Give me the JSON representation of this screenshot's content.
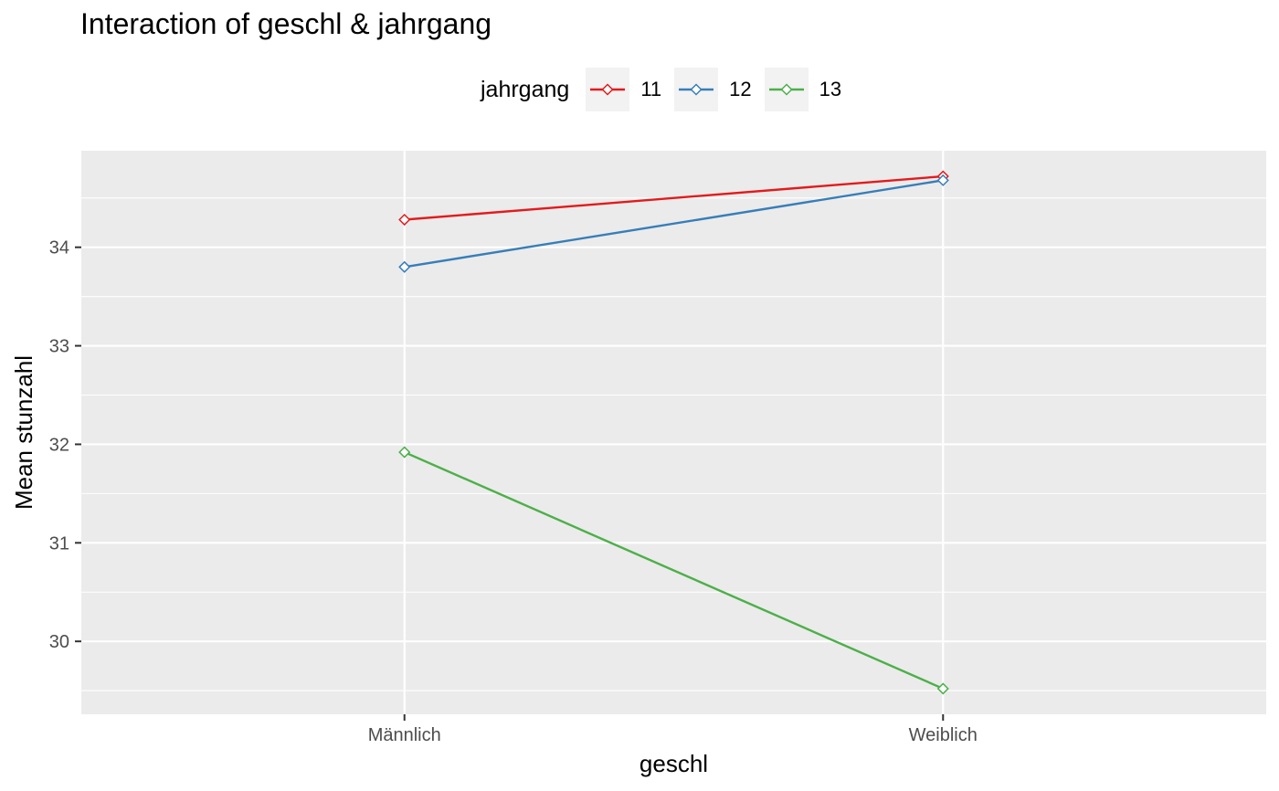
{
  "chart_data": {
    "type": "line",
    "title": "Interaction of geschl & jahrgang",
    "xlabel": "geschl",
    "ylabel": "Mean stunzahl",
    "categories": [
      "Männlich",
      "Weiblich"
    ],
    "ylim": [
      29.26,
      34.98
    ],
    "yticks": [
      30,
      31,
      32,
      33,
      34
    ],
    "grid": true,
    "legend": {
      "title": "jahrgang",
      "position": "top"
    },
    "series": [
      {
        "name": "11",
        "color": "#e41a1c",
        "values": [
          34.28,
          34.72
        ]
      },
      {
        "name": "12",
        "color": "#377eb8",
        "values": [
          33.8,
          34.68
        ]
      },
      {
        "name": "13",
        "color": "#4daf4a",
        "values": [
          31.92,
          29.52
        ]
      }
    ]
  }
}
